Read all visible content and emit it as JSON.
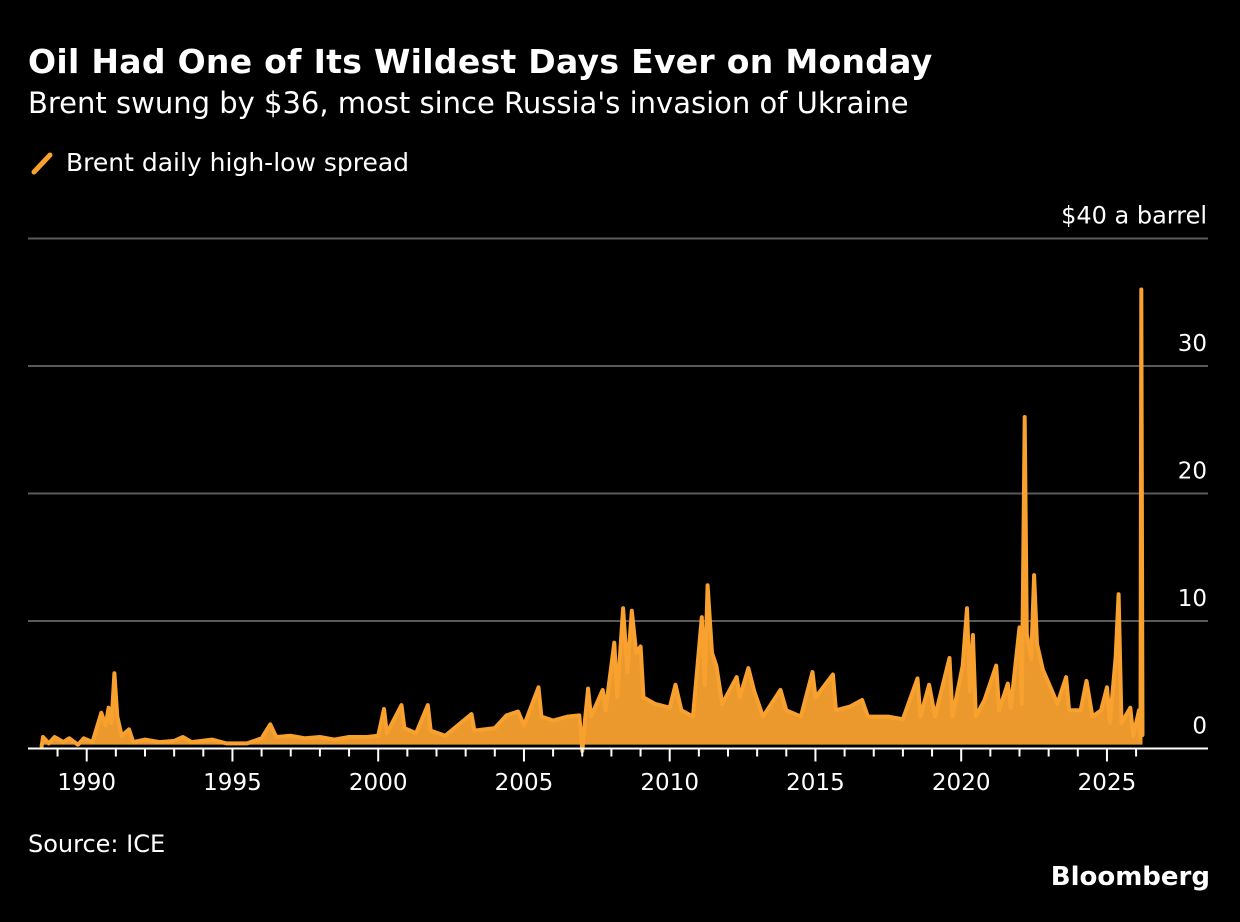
{
  "title": "Oil Had One of Its Wildest Days Ever on Monday",
  "subtitle": "Brent swung by $36, most since Russia's invasion of Ukraine",
  "source": "Source: ICE",
  "brand": "Bloomberg",
  "colors": {
    "series": "#f8a12f",
    "background": "#000000",
    "grid": "#5a5a5a"
  },
  "chart_data": {
    "type": "line",
    "title": "Oil Had One of Its Wildest Days Ever on Monday",
    "subtitle": "Brent swung by $36, most since Russia's invasion of Ukraine",
    "xlabel": "",
    "ylabel": "$40 a barrel",
    "ylim": [
      0,
      40
    ],
    "xlim": [
      1988,
      2028
    ],
    "y_ticks": [
      0,
      10,
      20,
      30,
      40
    ],
    "y_tick_labels": [
      "0",
      "10",
      "20",
      "30",
      "$40 a barrel"
    ],
    "x_ticks": [
      1990,
      1995,
      2000,
      2005,
      2010,
      2015,
      2020,
      2025
    ],
    "x_tick_labels": [
      "1990",
      "1995",
      "2000",
      "2005",
      "2010",
      "2015",
      "2020",
      "2025"
    ],
    "grid": true,
    "legend": "top-left",
    "series": [
      {
        "name": "Brent daily high-low spread",
        "color": "#f8a12f",
        "points": [
          [
            1988.45,
            0.1
          ],
          [
            1988.5,
            0.9
          ],
          [
            1988.7,
            0.4
          ],
          [
            1988.9,
            0.9
          ],
          [
            1989.2,
            0.5
          ],
          [
            1989.4,
            0.8
          ],
          [
            1989.7,
            0.3
          ],
          [
            1989.9,
            0.8
          ],
          [
            1990.2,
            0.5
          ],
          [
            1990.5,
            2.8
          ],
          [
            1990.65,
            1.8
          ],
          [
            1990.75,
            3.2
          ],
          [
            1990.85,
            2
          ],
          [
            1990.95,
            5.9
          ],
          [
            1991.05,
            2.5
          ],
          [
            1991.2,
            1
          ],
          [
            1991.45,
            1.5
          ],
          [
            1991.6,
            0.5
          ],
          [
            1992,
            0.7
          ],
          [
            1992.5,
            0.5
          ],
          [
            1993,
            0.6
          ],
          [
            1993.3,
            0.9
          ],
          [
            1993.6,
            0.5
          ],
          [
            1994.3,
            0.7
          ],
          [
            1994.8,
            0.4
          ],
          [
            1995.5,
            0.4
          ],
          [
            1996,
            0.8
          ],
          [
            1996.3,
            1.9
          ],
          [
            1996.5,
            0.9
          ],
          [
            1997,
            1
          ],
          [
            1997.5,
            0.8
          ],
          [
            1998,
            0.9
          ],
          [
            1998.5,
            0.7
          ],
          [
            1999,
            0.9
          ],
          [
            1999.6,
            0.9
          ],
          [
            2000,
            1
          ],
          [
            2000.2,
            3.1
          ],
          [
            2000.3,
            1.2
          ],
          [
            2000.8,
            3.4
          ],
          [
            2000.9,
            1.6
          ],
          [
            2001.3,
            1.2
          ],
          [
            2001.7,
            3.4
          ],
          [
            2001.8,
            1.4
          ],
          [
            2002.3,
            1
          ],
          [
            2003.2,
            2.7
          ],
          [
            2003.3,
            1.4
          ],
          [
            2004,
            1.6
          ],
          [
            2004.4,
            2.6
          ],
          [
            2004.8,
            2.9
          ],
          [
            2005,
            1.8
          ],
          [
            2005.5,
            4.8
          ],
          [
            2005.6,
            2.5
          ],
          [
            2006,
            2.2
          ],
          [
            2006.5,
            2.5
          ],
          [
            2006.9,
            2.6
          ],
          [
            2007,
            -0.2
          ],
          [
            2007.1,
            2.4
          ],
          [
            2007.2,
            4.7
          ],
          [
            2007.3,
            2.5
          ],
          [
            2007.7,
            4.6
          ],
          [
            2007.8,
            3
          ],
          [
            2008.1,
            8.3
          ],
          [
            2008.2,
            4
          ],
          [
            2008.4,
            11
          ],
          [
            2008.55,
            6
          ],
          [
            2008.7,
            10.8
          ],
          [
            2008.85,
            7.5
          ],
          [
            2009,
            8
          ],
          [
            2009.1,
            4
          ],
          [
            2009.5,
            3.5
          ],
          [
            2010,
            3.2
          ],
          [
            2010.2,
            5
          ],
          [
            2010.4,
            3
          ],
          [
            2010.8,
            2.5
          ],
          [
            2011.1,
            10.3
          ],
          [
            2011.2,
            5
          ],
          [
            2011.3,
            12.8
          ],
          [
            2011.45,
            7.5
          ],
          [
            2011.6,
            6.5
          ],
          [
            2011.8,
            3.5
          ],
          [
            2012.3,
            5.6
          ],
          [
            2012.4,
            4
          ],
          [
            2012.7,
            6.3
          ],
          [
            2012.9,
            4.5
          ],
          [
            2013.2,
            2.5
          ],
          [
            2013.8,
            4.6
          ],
          [
            2014,
            3
          ],
          [
            2014.5,
            2.5
          ],
          [
            2014.9,
            6
          ],
          [
            2015,
            4
          ],
          [
            2015.6,
            5.8
          ],
          [
            2015.7,
            3
          ],
          [
            2016.2,
            3.3
          ],
          [
            2016.6,
            3.8
          ],
          [
            2016.8,
            2.5
          ],
          [
            2017.5,
            2.5
          ],
          [
            2018,
            2.3
          ],
          [
            2018.5,
            5.5
          ],
          [
            2018.6,
            2.5
          ],
          [
            2018.9,
            5
          ],
          [
            2019.1,
            2.5
          ],
          [
            2019.6,
            7.1
          ],
          [
            2019.7,
            2.5
          ],
          [
            2020.05,
            6.5
          ],
          [
            2020.2,
            11
          ],
          [
            2020.3,
            4.5
          ],
          [
            2020.4,
            8.9
          ],
          [
            2020.5,
            2.5
          ],
          [
            2020.8,
            3.8
          ],
          [
            2021.2,
            6.5
          ],
          [
            2021.3,
            3
          ],
          [
            2021.6,
            5.1
          ],
          [
            2021.7,
            3.2
          ],
          [
            2022.0,
            9.5
          ],
          [
            2022.08,
            3.5
          ],
          [
            2022.18,
            26
          ],
          [
            2022.25,
            9
          ],
          [
            2022.4,
            7
          ],
          [
            2022.5,
            13.6
          ],
          [
            2022.6,
            8.2
          ],
          [
            2022.8,
            6.2
          ],
          [
            2023.1,
            4.6
          ],
          [
            2023.3,
            3.5
          ],
          [
            2023.6,
            5.6
          ],
          [
            2023.7,
            3
          ],
          [
            2024.1,
            3
          ],
          [
            2024.3,
            5.3
          ],
          [
            2024.5,
            2.5
          ],
          [
            2024.8,
            3
          ],
          [
            2025.0,
            4.8
          ],
          [
            2025.1,
            2
          ],
          [
            2025.3,
            7.2
          ],
          [
            2025.4,
            12.1
          ],
          [
            2025.5,
            2
          ],
          [
            2025.8,
            3.2
          ],
          [
            2025.9,
            1
          ],
          [
            2026.1,
            3
          ],
          [
            2026.15,
            0.8
          ],
          [
            2026.18,
            36
          ],
          [
            2026.22,
            1
          ]
        ]
      }
    ]
  }
}
